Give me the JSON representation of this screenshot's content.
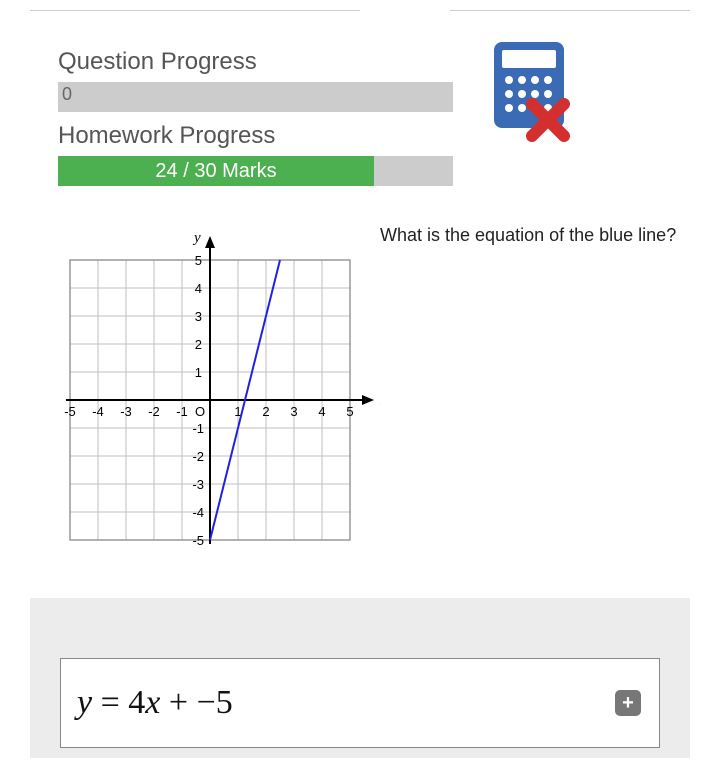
{
  "progress": {
    "question_label": "Question Progress",
    "question_value": "0",
    "question_fill_pct": 0,
    "homework_label": "Homework Progress",
    "homework_value": "24 / 30 Marks",
    "homework_fill_pct": 80,
    "bar_bg_color": "#cccccc",
    "bar_fill_color": "#4caf50"
  },
  "calculator": {
    "body_color": "#3b6bb5",
    "screen_color": "#ffffff",
    "button_color": "#ffffff",
    "x_color": "#d32f2f"
  },
  "question": {
    "text": "What is the equation of the blue line?"
  },
  "graph": {
    "type": "line",
    "xlim": [
      -5,
      5
    ],
    "ylim": [
      -5,
      5
    ],
    "xtick_labels": [
      "-5",
      "-4",
      "-3",
      "-2",
      "-1",
      "",
      "1",
      "2",
      "3",
      "4",
      "5"
    ],
    "ytick_labels_pos": [
      "1",
      "2",
      "3",
      "4",
      "5"
    ],
    "ytick_labels_neg": [
      "-1",
      "-2",
      "-3",
      "-4",
      "-5"
    ],
    "origin_label": "O",
    "x_axis_label": "x",
    "y_axis_label": "y",
    "grid_color": "#bfbfbf",
    "axis_color": "#000000",
    "inner_border_color": "#888888",
    "line": {
      "slope": 4,
      "intercept": -5,
      "color": "#2020e8",
      "width": 2,
      "points": [
        {
          "x": 0,
          "y": -5
        },
        {
          "x": 2.5,
          "y": 5
        }
      ]
    },
    "label_fontsize": 13,
    "axis_label_fontsize": 15
  },
  "answer": {
    "expression_plain": "y = 4x + -5",
    "lhs_var": "y",
    "eq": " = ",
    "coef": "4",
    "rhs_var": "x",
    "op": " + ",
    "neg": "−5",
    "box_border": "#888888",
    "panel_bg": "#ececec",
    "plus_label": "+"
  }
}
